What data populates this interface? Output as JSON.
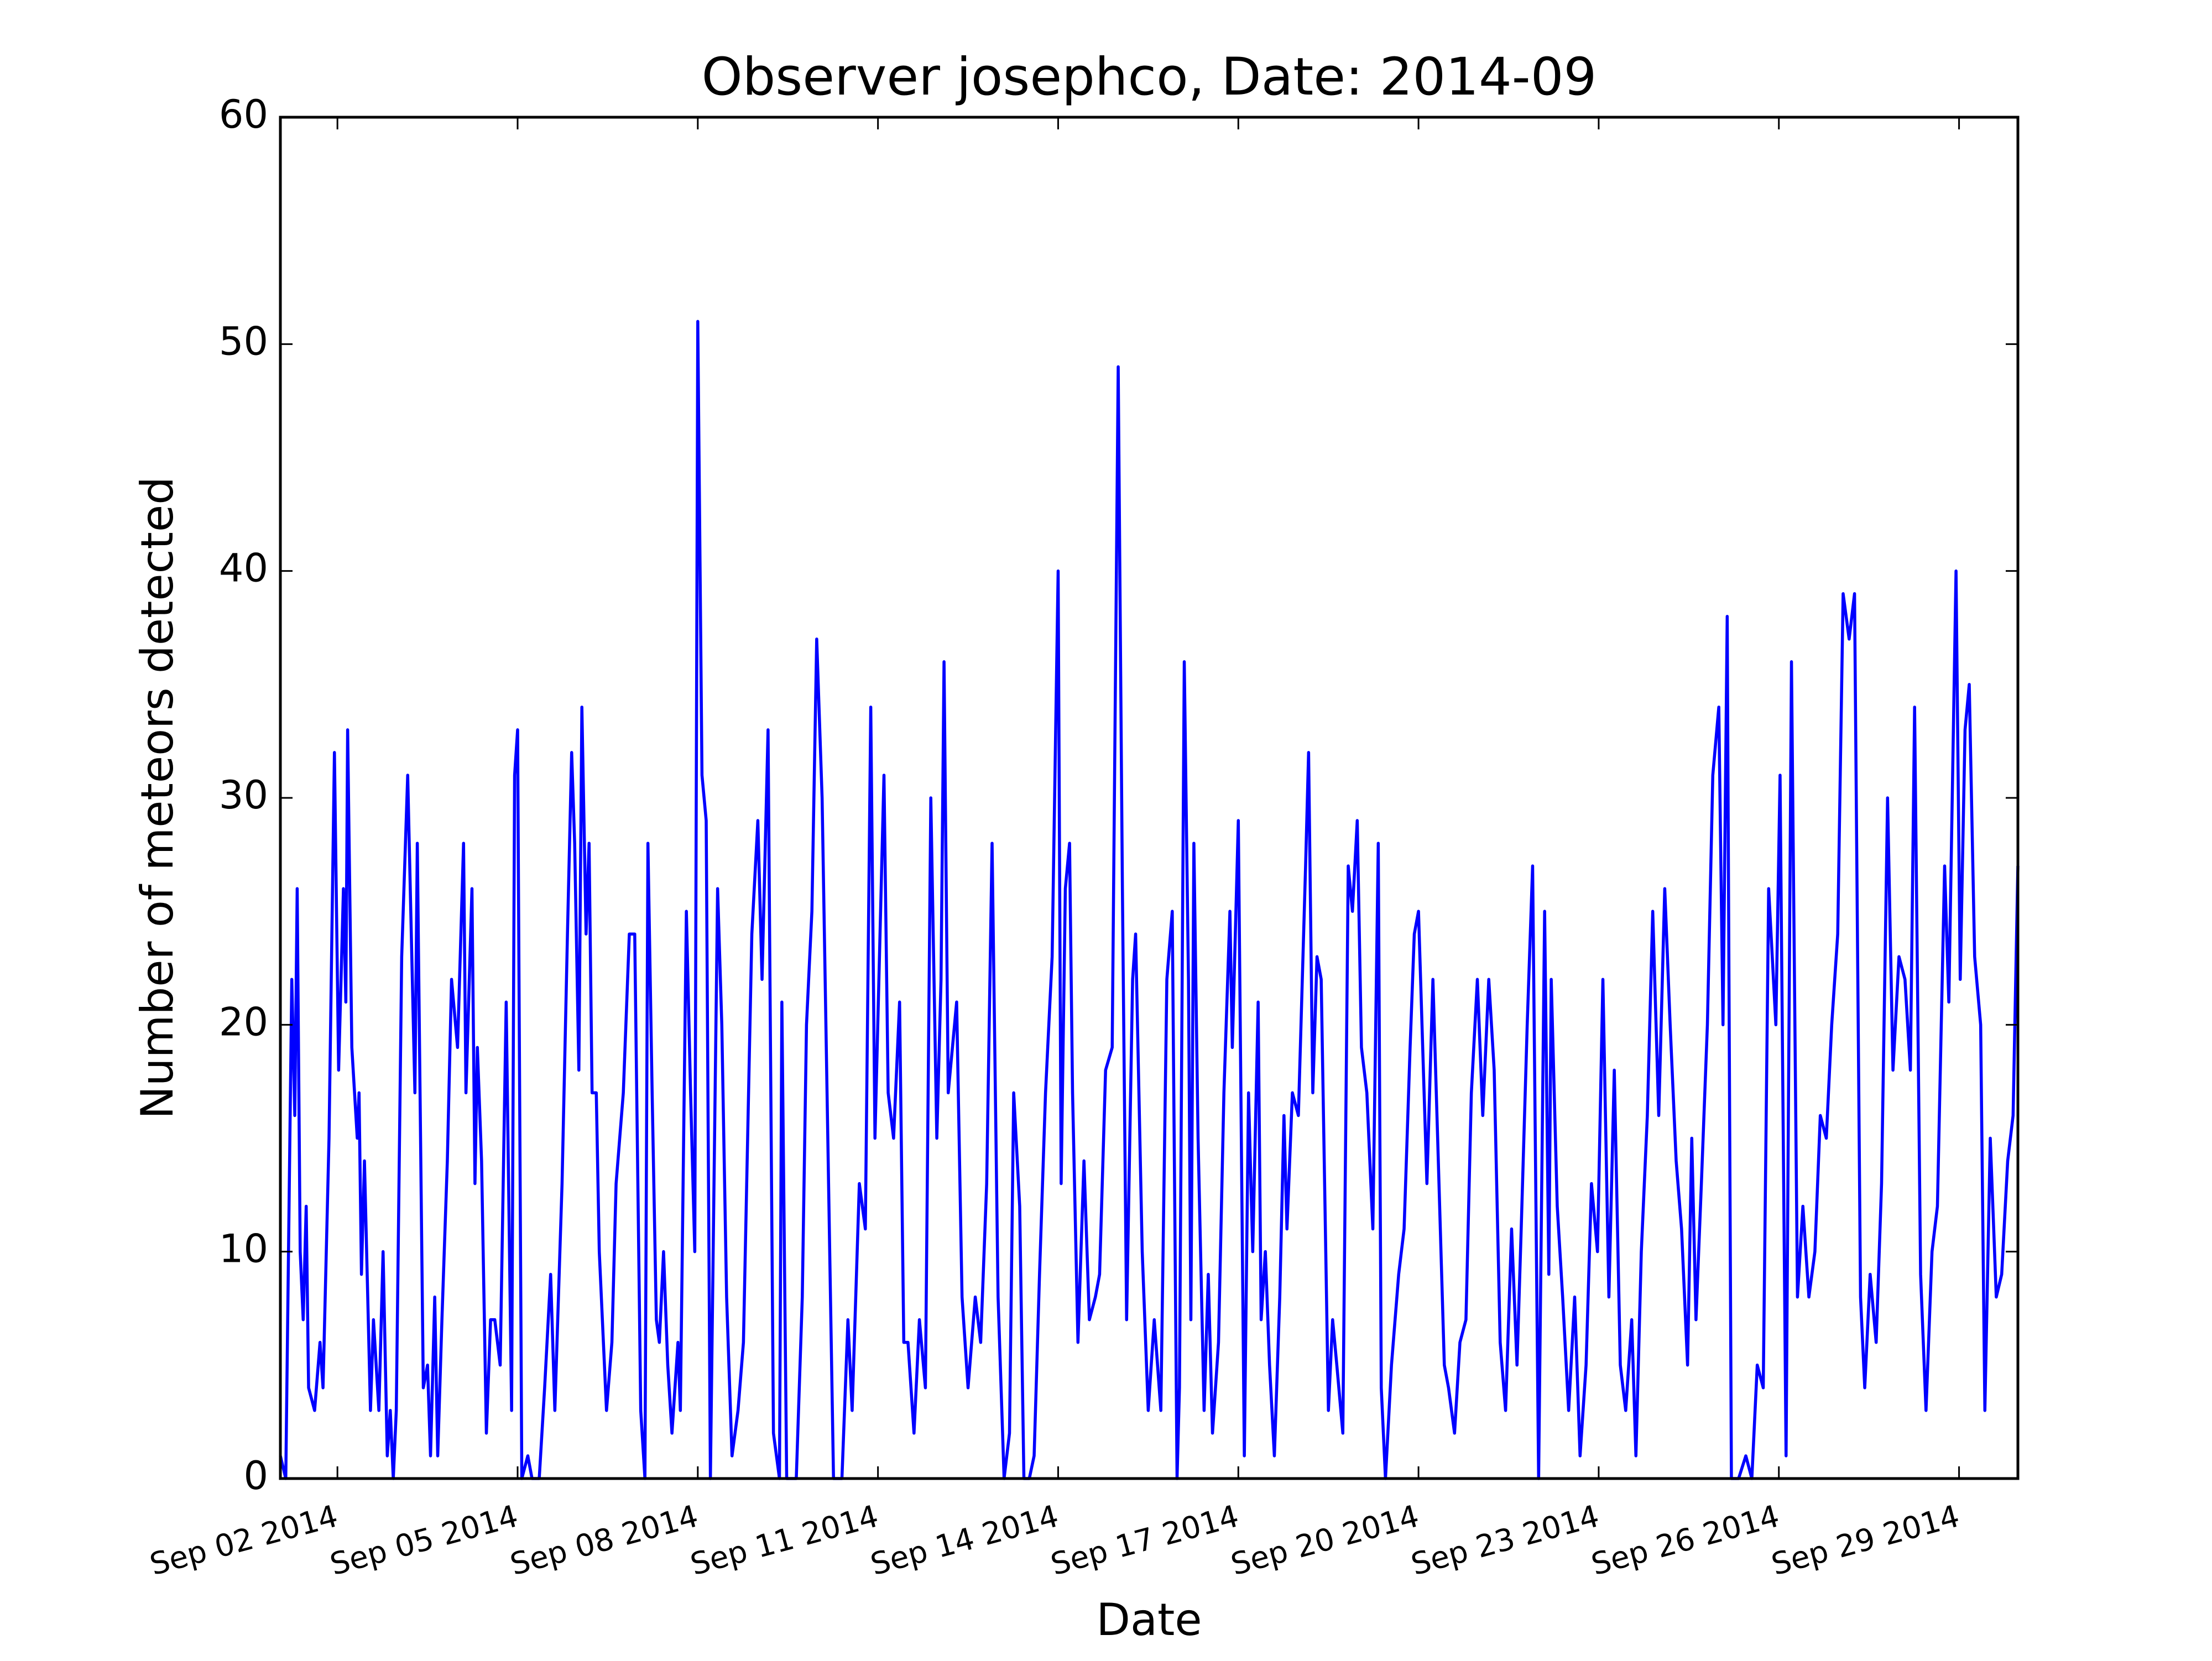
{
  "chart_data": {
    "type": "line",
    "title": "Observer josephco, Date: 2014-09",
    "xlabel": "Date",
    "ylabel": "Number of meteors detected",
    "color": "#0000ff",
    "xlim": [
      1.05,
      29.98
    ],
    "ylim": [
      0,
      60
    ],
    "xticks": [
      {
        "value": 2,
        "label": "Sep 02 2014"
      },
      {
        "value": 5,
        "label": "Sep 05 2014"
      },
      {
        "value": 8,
        "label": "Sep 08 2014"
      },
      {
        "value": 11,
        "label": "Sep 11 2014"
      },
      {
        "value": 14,
        "label": "Sep 14 2014"
      },
      {
        "value": 17,
        "label": "Sep 17 2014"
      },
      {
        "value": 20,
        "label": "Sep 20 2014"
      },
      {
        "value": 23,
        "label": "Sep 23 2014"
      },
      {
        "value": 26,
        "label": "Sep 26 2014"
      },
      {
        "value": 29,
        "label": "Sep 29 2014"
      }
    ],
    "yticks": [
      0,
      10,
      20,
      30,
      40,
      50,
      60
    ],
    "x": [
      1.05,
      1.14,
      1.24,
      1.29,
      1.33,
      1.38,
      1.43,
      1.48,
      1.52,
      1.62,
      1.71,
      1.76,
      1.86,
      1.95,
      2.02,
      2.1,
      2.14,
      2.17,
      2.24,
      2.33,
      2.36,
      2.4,
      2.45,
      2.55,
      2.6,
      2.69,
      2.76,
      2.83,
      2.88,
      2.93,
      2.98,
      3.07,
      3.17,
      3.29,
      3.33,
      3.43,
      3.5,
      3.55,
      3.62,
      3.67,
      3.74,
      3.83,
      3.9,
      4.0,
      4.1,
      4.14,
      4.24,
      4.29,
      4.33,
      4.4,
      4.48,
      4.55,
      4.62,
      4.71,
      4.81,
      4.9,
      4.95,
      5.0,
      5.07,
      5.17,
      5.24,
      5.36,
      5.45,
      5.55,
      5.62,
      5.74,
      5.83,
      5.9,
      5.95,
      6.02,
      6.07,
      6.14,
      6.19,
      6.24,
      6.31,
      6.36,
      6.48,
      6.57,
      6.64,
      6.76,
      6.86,
      6.95,
      7.05,
      7.12,
      7.17,
      7.24,
      7.31,
      7.36,
      7.43,
      7.5,
      7.57,
      7.67,
      7.71,
      7.81,
      7.88,
      7.95,
      8.0,
      8.07,
      8.14,
      8.21,
      8.33,
      8.4,
      8.48,
      8.57,
      8.67,
      8.76,
      8.9,
      9.0,
      9.07,
      9.17,
      9.26,
      9.36,
      9.4,
      9.48,
      9.64,
      9.74,
      9.81,
      9.9,
      9.98,
      10.07,
      10.26,
      10.4,
      10.5,
      10.57,
      10.69,
      10.79,
      10.88,
      10.95,
      11.1,
      11.17,
      11.26,
      11.36,
      11.43,
      11.5,
      11.6,
      11.69,
      11.79,
      11.88,
      11.98,
      12.05,
      12.1,
      12.17,
      12.31,
      12.4,
      12.5,
      12.62,
      12.71,
      12.81,
      12.9,
      13.0,
      13.1,
      13.19,
      13.26,
      13.36,
      13.43,
      13.52,
      13.6,
      13.69,
      13.79,
      13.9,
      14.0,
      14.05,
      14.12,
      14.19,
      14.24,
      14.33,
      14.43,
      14.52,
      14.62,
      14.69,
      14.79,
      14.9,
      15.0,
      15.07,
      15.14,
      15.24,
      15.29,
      15.4,
      15.5,
      15.6,
      15.71,
      15.81,
      15.9,
      15.98,
      16.02,
      16.1,
      16.17,
      16.21,
      16.26,
      16.33,
      16.43,
      16.5,
      16.57,
      16.67,
      16.76,
      16.86,
      16.9,
      17.0,
      17.1,
      17.17,
      17.24,
      17.33,
      17.38,
      17.45,
      17.52,
      17.6,
      17.69,
      17.76,
      17.81,
      17.9,
      18.0,
      18.12,
      18.17,
      18.24,
      18.31,
      18.38,
      18.5,
      18.57,
      18.64,
      18.74,
      18.83,
      18.9,
      18.98,
      19.05,
      19.14,
      19.24,
      19.33,
      19.38,
      19.45,
      19.55,
      19.67,
      19.76,
      19.86,
      19.93,
      20.0,
      20.07,
      20.14,
      20.24,
      20.33,
      20.43,
      20.5,
      20.6,
      20.69,
      20.79,
      20.88,
      20.98,
      21.07,
      21.17,
      21.26,
      21.36,
      21.45,
      21.55,
      21.64,
      21.71,
      21.81,
      21.9,
      22.0,
      22.1,
      22.17,
      22.21,
      22.31,
      22.4,
      22.5,
      22.6,
      22.69,
      22.79,
      22.88,
      22.98,
      23.07,
      23.17,
      23.26,
      23.36,
      23.45,
      23.55,
      23.62,
      23.71,
      23.81,
      23.9,
      24.0,
      24.1,
      24.19,
      24.29,
      24.38,
      24.48,
      24.55,
      24.62,
      24.71,
      24.81,
      24.9,
      25.0,
      25.07,
      25.14,
      25.21,
      25.33,
      25.45,
      25.55,
      25.64,
      25.74,
      25.83,
      25.95,
      26.02,
      26.12,
      26.21,
      26.31,
      26.4,
      26.5,
      26.6,
      26.69,
      26.79,
      26.88,
      26.98,
      27.07,
      27.17,
      27.26,
      27.36,
      27.43,
      27.52,
      27.62,
      27.71,
      27.81,
      27.9,
      28.0,
      28.1,
      28.19,
      28.26,
      28.36,
      28.45,
      28.55,
      28.64,
      28.76,
      28.83,
      28.95,
      29.02,
      29.1,
      29.17,
      29.26,
      29.36,
      29.43,
      29.52,
      29.62,
      29.71,
      29.81,
      29.9,
      29.98
    ],
    "values": [
      1,
      0,
      22,
      16,
      26,
      10,
      7,
      12,
      4,
      3,
      6,
      4,
      15,
      32,
      18,
      26,
      21,
      33,
      19,
      15,
      17,
      9,
      14,
      3,
      7,
      3,
      10,
      1,
      3,
      0,
      3,
      23,
      31,
      17,
      28,
      4,
      5,
      1,
      8,
      1,
      7,
      14,
      22,
      19,
      28,
      17,
      26,
      13,
      19,
      14,
      2,
      7,
      7,
      5,
      21,
      3,
      31,
      33,
      0,
      1,
      0,
      0,
      4,
      9,
      3,
      13,
      24,
      32,
      28,
      18,
      34,
      24,
      28,
      17,
      17,
      10,
      3,
      6,
      13,
      17,
      24,
      24,
      3,
      0,
      28,
      17,
      7,
      6,
      10,
      5,
      2,
      6,
      3,
      25,
      17,
      10,
      51,
      31,
      29,
      0,
      26,
      20,
      8,
      1,
      3,
      6,
      24,
      29,
      22,
      33,
      2,
      0,
      21,
      0,
      0,
      8,
      20,
      25,
      37,
      30,
      0,
      0,
      7,
      3,
      13,
      11,
      34,
      15,
      31,
      17,
      15,
      21,
      6,
      6,
      2,
      7,
      4,
      30,
      15,
      22,
      36,
      17,
      21,
      8,
      4,
      8,
      6,
      13,
      28,
      8,
      0,
      2,
      17,
      12,
      0,
      0,
      1,
      9,
      17,
      23,
      40,
      13,
      26,
      28,
      17,
      6,
      14,
      7,
      8,
      9,
      18,
      19,
      49,
      26,
      7,
      22,
      24,
      10,
      3,
      7,
      3,
      22,
      25,
      0,
      4,
      36,
      22,
      7,
      28,
      15,
      3,
      9,
      2,
      6,
      17,
      25,
      19,
      29,
      1,
      17,
      10,
      21,
      7,
      10,
      5,
      1,
      8,
      16,
      11,
      17,
      16,
      27,
      32,
      17,
      23,
      22,
      3,
      7,
      5,
      2,
      27,
      25,
      29,
      19,
      17,
      11,
      28,
      4,
      0,
      5,
      9,
      11,
      19,
      24,
      25,
      19,
      13,
      22,
      14,
      5,
      4,
      2,
      6,
      7,
      17,
      22,
      16,
      22,
      18,
      6,
      3,
      11,
      5,
      11,
      20,
      27,
      0,
      25,
      9,
      22,
      12,
      8,
      3,
      8,
      1,
      5,
      13,
      10,
      22,
      8,
      18,
      5,
      3,
      7,
      1,
      10,
      16,
      25,
      16,
      26,
      20,
      14,
      11,
      5,
      15,
      7,
      13,
      20,
      31,
      34,
      20,
      38,
      0,
      0,
      1,
      0,
      5,
      4,
      26,
      20,
      31,
      1,
      36,
      8,
      12,
      8,
      10,
      16,
      15,
      20,
      24,
      39,
      37,
      39,
      8,
      4,
      9,
      6,
      13,
      30,
      18,
      23,
      22,
      18,
      34,
      9,
      3,
      10,
      12,
      27,
      21,
      40,
      22,
      33,
      35,
      23,
      20,
      3,
      15,
      8,
      9,
      14,
      16,
      27
    ]
  }
}
